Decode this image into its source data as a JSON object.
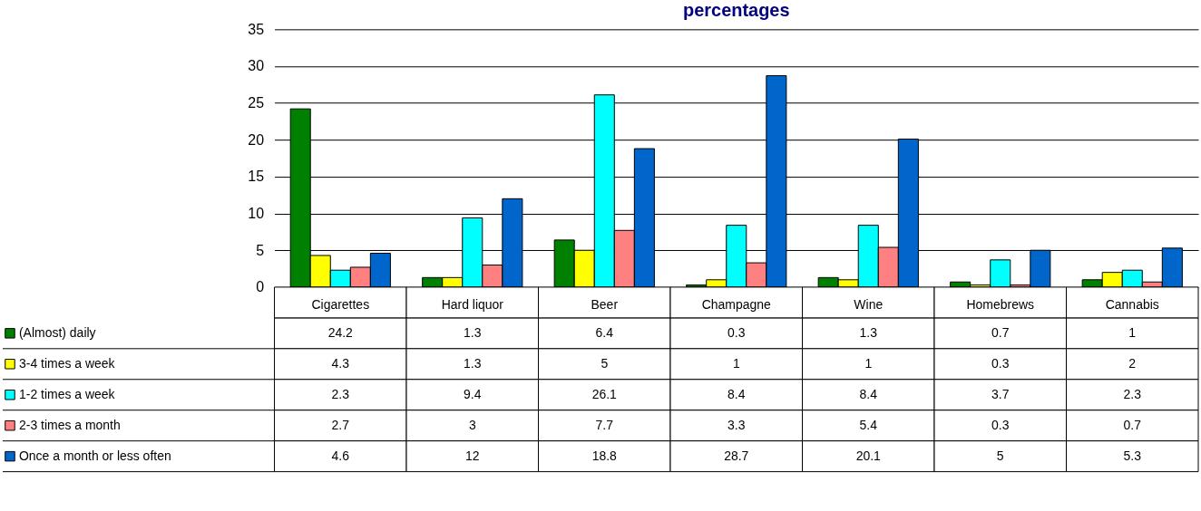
{
  "chart_data": {
    "type": "bar",
    "title": "percentages",
    "categories": [
      "Cigarettes",
      "Hard liquor",
      "Beer",
      "Champagne",
      "Wine",
      "Homebrews",
      "Cannabis"
    ],
    "series": [
      {
        "name": "(Almost) daily",
        "color": "#008000",
        "values": [
          24.2,
          1.3,
          6.4,
          0.3,
          1.3,
          0.7,
          1
        ]
      },
      {
        "name": "3-4 times a week",
        "color": "#ffff00",
        "values": [
          4.3,
          1.3,
          5,
          1,
          1,
          0.3,
          2
        ]
      },
      {
        "name": "1-2 times a week",
        "color": "#00ffff",
        "values": [
          2.3,
          9.4,
          26.1,
          8.4,
          8.4,
          3.7,
          2.3
        ]
      },
      {
        "name": "2-3 times a month",
        "color": "#ff8080",
        "values": [
          2.7,
          3,
          7.7,
          3.3,
          5.4,
          0.3,
          0.7
        ]
      },
      {
        "name": "Once a month or less often",
        "color": "#0066cc",
        "values": [
          4.6,
          12,
          18.8,
          28.7,
          20.1,
          5,
          5.3
        ]
      }
    ],
    "ylim": [
      0,
      35
    ],
    "yticks": [
      0,
      5,
      10,
      15,
      20,
      25,
      30,
      35
    ],
    "grid": "y",
    "legend": "bottom left",
    "data_labels": true
  }
}
